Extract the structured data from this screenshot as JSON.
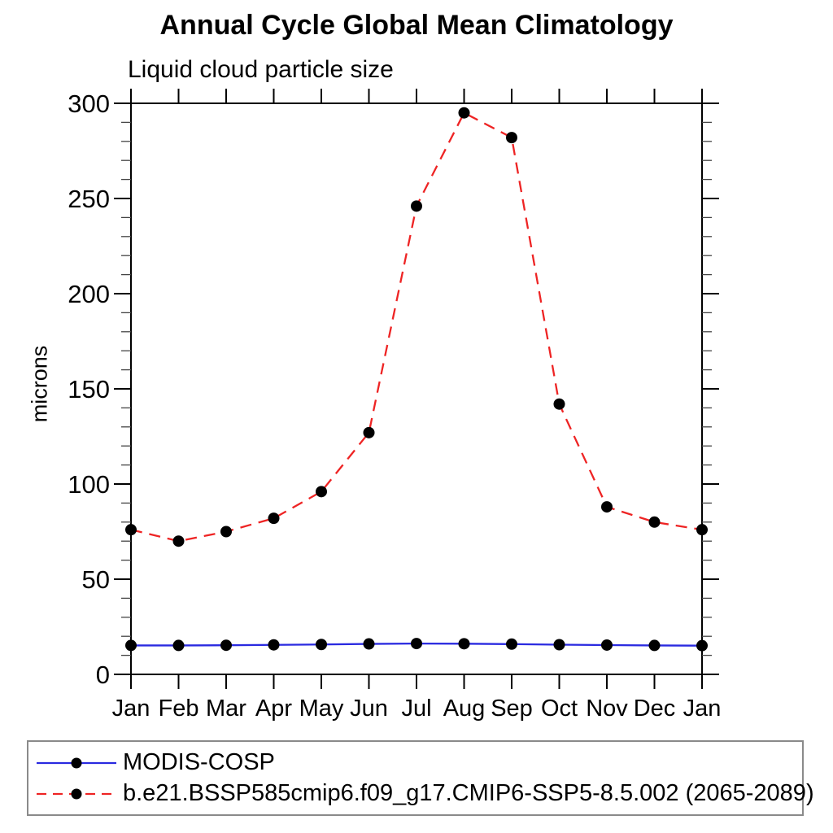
{
  "page": {
    "background_color": "#ffffff"
  },
  "chart_data": {
    "type": "line",
    "title": "Annual Cycle Global Mean Climatology",
    "subtitle": "Liquid cloud particle size",
    "xlabel": "",
    "ylabel": "microns",
    "ylim": [
      0,
      300
    ],
    "ytick_major": [
      0,
      50,
      100,
      150,
      200,
      250,
      300
    ],
    "ytick_minor_step": 10,
    "grid": false,
    "legend_position": "bottom-box",
    "categories": [
      "Jan",
      "Feb",
      "Mar",
      "Apr",
      "May",
      "Jun",
      "Jul",
      "Aug",
      "Sep",
      "Oct",
      "Nov",
      "Dec",
      "Jan"
    ],
    "series": [
      {
        "name": "MODIS-COSP",
        "color": "#2a2ae0",
        "line_style": "solid",
        "marker": "circle",
        "marker_color": "#000000",
        "values": [
          15.2,
          15.2,
          15.3,
          15.5,
          15.7,
          16.0,
          16.2,
          16.1,
          15.9,
          15.6,
          15.4,
          15.2,
          15.1
        ]
      },
      {
        "name": "b.e21.BSSP585cmip6.f09_g17.CMIP6-SSP5-8.5.002 (2065-2089)",
        "color": "#ee2424",
        "line_style": "dashed",
        "marker": "circle",
        "marker_color": "#000000",
        "values": [
          76,
          70,
          75,
          82,
          96,
          127,
          246,
          295,
          282,
          142,
          88,
          80,
          76
        ]
      }
    ],
    "axis_color": "#000000"
  }
}
